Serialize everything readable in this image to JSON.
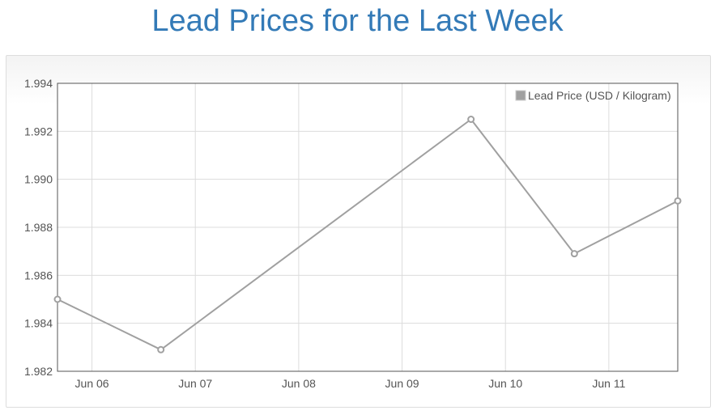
{
  "title": "Lead Prices for the Last Week",
  "chart_data": {
    "type": "line",
    "title": "Lead Prices for the Last Week",
    "xlabel": "",
    "ylabel": "",
    "x_ticks": [
      "Jun 06",
      "Jun 07",
      "Jun 08",
      "Jun 09",
      "Jun 10",
      "Jun 11"
    ],
    "y_ticks": [
      "1.982",
      "1.984",
      "1.986",
      "1.988",
      "1.990",
      "1.992",
      "1.994"
    ],
    "ylim": [
      1.982,
      1.994
    ],
    "xlim": [
      "2023-06-05T16:00",
      "2023-06-11T16:00"
    ],
    "grid": true,
    "legend_position": "top-right",
    "series": [
      {
        "name": "Lead Price (USD / Kilogram)",
        "color": "#a0a0a0",
        "points": [
          {
            "x": "2023-06-05T16:00",
            "y": 1.985
          },
          {
            "x": "2023-06-06T16:00",
            "y": 1.9829
          },
          {
            "x": "2023-06-09T16:00",
            "y": 1.9925
          },
          {
            "x": "2023-06-10T16:00",
            "y": 1.9869
          },
          {
            "x": "2023-06-11T16:00",
            "y": 1.9891
          }
        ]
      }
    ]
  }
}
